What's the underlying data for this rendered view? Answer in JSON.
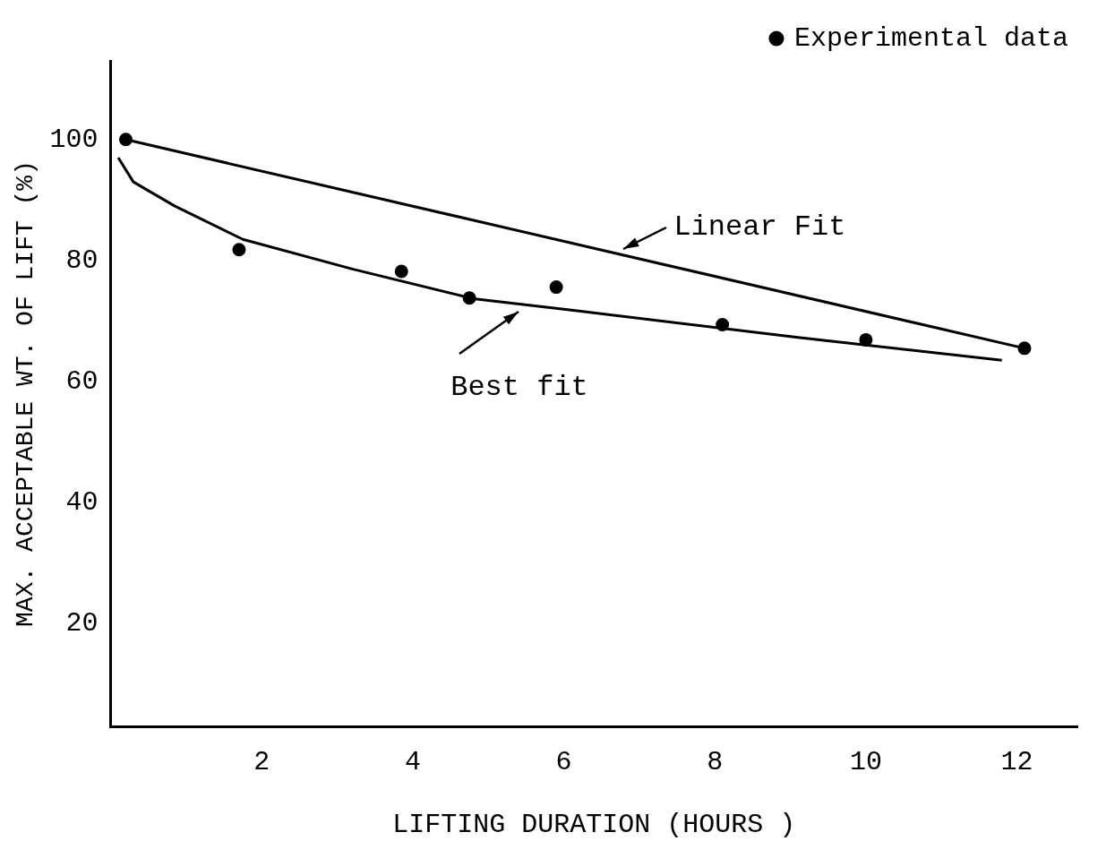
{
  "chart_data": {
    "type": "scatter",
    "xlabel": "LIFTING DURATION (HOURS )",
    "ylabel": "MAX. ACCEPTABLE WT. OF LIFT (%)",
    "series": [
      {
        "name": "Experimental data",
        "color": "#000000",
        "marker": "circle",
        "x": [
          0.2,
          1.7,
          3.85,
          4.75,
          5.9,
          8.1,
          10,
          12.1
        ],
        "values": [
          100,
          81.8,
          78.2,
          73.8,
          75.6,
          69.4,
          66.9,
          65.5
        ]
      },
      {
        "name": "Linear Fit",
        "type": "line",
        "color": "#000000",
        "marker": "none",
        "x": [
          0.2,
          12.1
        ],
        "values": [
          100,
          65.5
        ]
      },
      {
        "name": "Best fit",
        "type": "line",
        "color": "#000000",
        "marker": "none",
        "x": [
          0.1,
          0.3,
          0.85,
          1.75,
          3.2,
          4.8,
          6.1,
          9.1,
          11.8
        ],
        "values": [
          97,
          93,
          89,
          83.5,
          78.6,
          73.7,
          71.8,
          67.3,
          63.5
        ]
      }
    ],
    "xlim": [
      0,
      12.8
    ],
    "ylim": [
      3,
      113
    ],
    "xticks": [
      2,
      4,
      6,
      8,
      10,
      12
    ],
    "yticks": [
      20,
      40,
      60,
      80,
      100
    ],
    "grid": false,
    "legend": "top right"
  }
}
